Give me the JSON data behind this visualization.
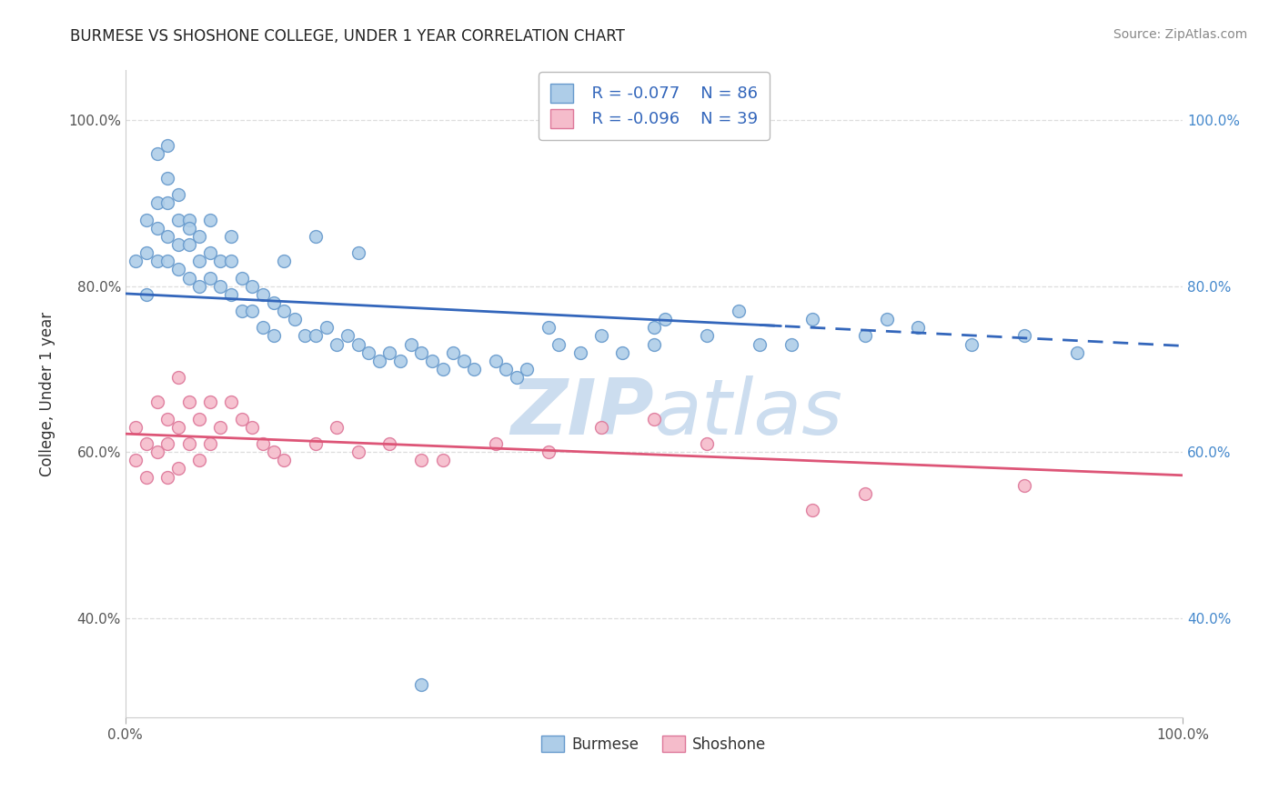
{
  "title": "BURMESE VS SHOSHONE COLLEGE, UNDER 1 YEAR CORRELATION CHART",
  "source_text": "Source: ZipAtlas.com",
  "ylabel": "College, Under 1 year",
  "xlim": [
    0.0,
    1.0
  ],
  "ylim": [
    0.28,
    1.06
  ],
  "y_ticks": [
    0.4,
    0.6,
    0.8,
    1.0
  ],
  "legend_blue_label": "Burmese",
  "legend_pink_label": "Shoshone",
  "legend_blue_R": "R = -0.077",
  "legend_blue_N": "N = 86",
  "legend_pink_R": "R = -0.096",
  "legend_pink_N": "N = 39",
  "blue_color": "#aecde8",
  "blue_edge_color": "#6699cc",
  "blue_line_color": "#3366bb",
  "pink_color": "#f5bccb",
  "pink_edge_color": "#dd7799",
  "pink_line_color": "#dd5577",
  "background_color": "#ffffff",
  "grid_color": "#dddddd",
  "title_color": "#222222",
  "watermark_color": "#ccddef",
  "right_tick_color": "#4488cc",
  "blue_line_start_y": 0.791,
  "blue_line_end_y": 0.728,
  "pink_line_start_y": 0.622,
  "pink_line_end_y": 0.572,
  "blue_x": [
    0.01,
    0.02,
    0.02,
    0.02,
    0.03,
    0.03,
    0.03,
    0.04,
    0.04,
    0.04,
    0.04,
    0.05,
    0.05,
    0.05,
    0.05,
    0.06,
    0.06,
    0.06,
    0.07,
    0.07,
    0.07,
    0.08,
    0.08,
    0.09,
    0.09,
    0.1,
    0.1,
    0.11,
    0.11,
    0.12,
    0.12,
    0.13,
    0.13,
    0.14,
    0.14,
    0.15,
    0.16,
    0.17,
    0.18,
    0.19,
    0.2,
    0.21,
    0.22,
    0.23,
    0.24,
    0.25,
    0.26,
    0.27,
    0.28,
    0.29,
    0.3,
    0.31,
    0.32,
    0.33,
    0.35,
    0.36,
    0.37,
    0.38,
    0.4,
    0.41,
    0.43,
    0.45,
    0.47,
    0.5,
    0.5,
    0.51,
    0.55,
    0.58,
    0.6,
    0.63,
    0.65,
    0.7,
    0.72,
    0.75,
    0.8,
    0.85,
    0.9,
    0.28,
    0.15,
    0.18,
    0.22,
    0.1,
    0.08,
    0.06,
    0.04,
    0.03
  ],
  "blue_y": [
    0.83,
    0.88,
    0.84,
    0.79,
    0.9,
    0.87,
    0.83,
    0.93,
    0.9,
    0.86,
    0.83,
    0.91,
    0.88,
    0.85,
    0.82,
    0.88,
    0.85,
    0.81,
    0.86,
    0.83,
    0.8,
    0.84,
    0.81,
    0.83,
    0.8,
    0.83,
    0.79,
    0.81,
    0.77,
    0.8,
    0.77,
    0.79,
    0.75,
    0.78,
    0.74,
    0.77,
    0.76,
    0.74,
    0.74,
    0.75,
    0.73,
    0.74,
    0.73,
    0.72,
    0.71,
    0.72,
    0.71,
    0.73,
    0.72,
    0.71,
    0.7,
    0.72,
    0.71,
    0.7,
    0.71,
    0.7,
    0.69,
    0.7,
    0.75,
    0.73,
    0.72,
    0.74,
    0.72,
    0.75,
    0.73,
    0.76,
    0.74,
    0.77,
    0.73,
    0.73,
    0.76,
    0.74,
    0.76,
    0.75,
    0.73,
    0.74,
    0.72,
    0.32,
    0.83,
    0.86,
    0.84,
    0.86,
    0.88,
    0.87,
    0.97,
    0.96
  ],
  "pink_x": [
    0.01,
    0.01,
    0.02,
    0.02,
    0.03,
    0.03,
    0.04,
    0.04,
    0.04,
    0.05,
    0.05,
    0.05,
    0.06,
    0.06,
    0.07,
    0.07,
    0.08,
    0.08,
    0.09,
    0.1,
    0.11,
    0.12,
    0.13,
    0.14,
    0.15,
    0.18,
    0.2,
    0.22,
    0.25,
    0.28,
    0.3,
    0.35,
    0.4,
    0.45,
    0.5,
    0.55,
    0.65,
    0.7,
    0.85
  ],
  "pink_y": [
    0.63,
    0.59,
    0.61,
    0.57,
    0.66,
    0.6,
    0.64,
    0.61,
    0.57,
    0.69,
    0.63,
    0.58,
    0.66,
    0.61,
    0.64,
    0.59,
    0.66,
    0.61,
    0.63,
    0.66,
    0.64,
    0.63,
    0.61,
    0.6,
    0.59,
    0.61,
    0.63,
    0.6,
    0.61,
    0.59,
    0.59,
    0.61,
    0.6,
    0.63,
    0.64,
    0.61,
    0.53,
    0.55,
    0.56
  ],
  "marker_size": 100,
  "marker_linewidth": 1.0,
  "line_width": 2.0
}
